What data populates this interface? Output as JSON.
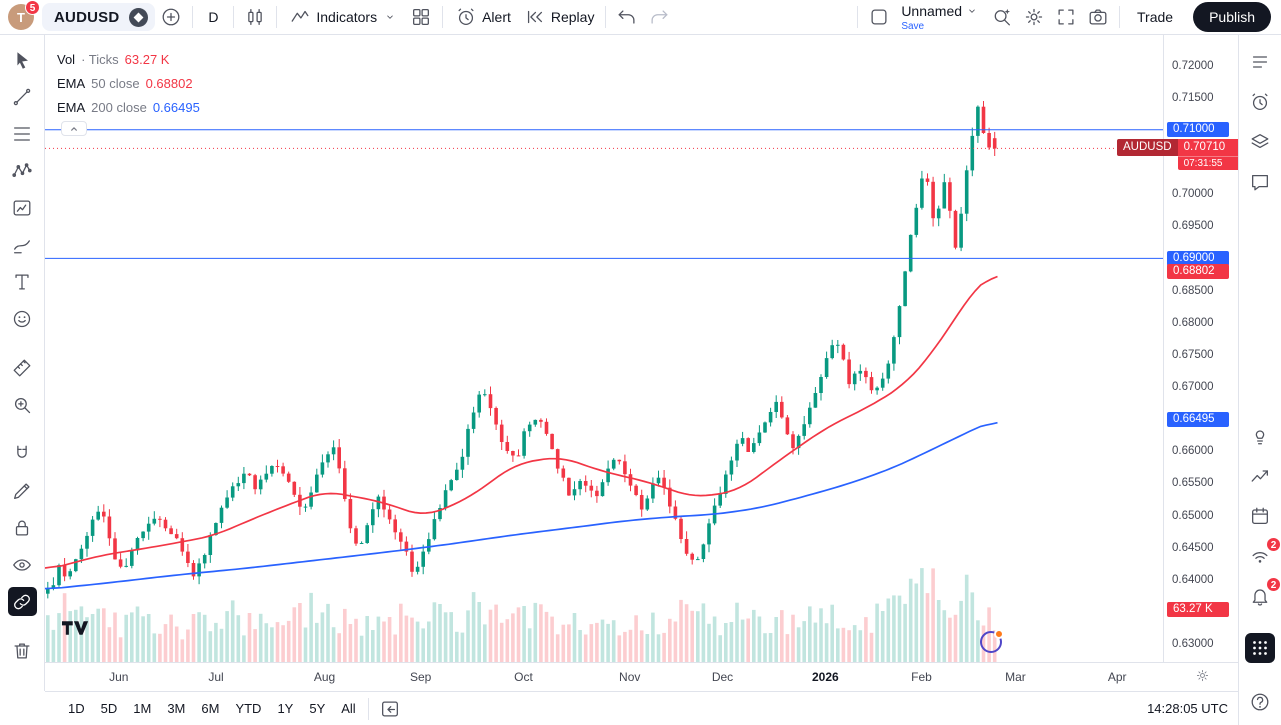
{
  "topbar": {
    "avatar_initial": "T",
    "avatar_badge": "5",
    "symbol": "AUDUSD",
    "interval": "D",
    "indicators_label": "Indicators",
    "alert_label": "Alert",
    "replay_label": "Replay",
    "layout_name": "Unnamed",
    "save_label": "Save",
    "trade_label": "Trade",
    "publish_label": "Publish"
  },
  "left_toolbar": [
    {
      "name": "cursor-tool",
      "icon": "cursor"
    },
    {
      "name": "trend-line-tool",
      "icon": "trend"
    },
    {
      "name": "fib-retracement-tool",
      "icon": "fib"
    },
    {
      "name": "xabcd-pattern-tool",
      "icon": "pattern"
    },
    {
      "name": "forecast-tool",
      "icon": "forecast"
    },
    {
      "name": "brush-tool",
      "icon": "brush"
    },
    {
      "name": "text-tool",
      "icon": "text"
    },
    {
      "name": "emoji-tool",
      "icon": "emoji"
    },
    {
      "name": "measure-tool",
      "icon": "measure",
      "gap": true
    },
    {
      "name": "zoom-tool",
      "icon": "zoomtool"
    },
    {
      "name": "magnet-tool",
      "icon": "magnet",
      "gap": true
    },
    {
      "name": "drawing-mode-tool",
      "icon": "pencil"
    },
    {
      "name": "lock-drawings-tool",
      "icon": "lock"
    },
    {
      "name": "hide-drawings-tool",
      "icon": "eye"
    },
    {
      "name": "sync-drawings-tool",
      "icon": "link",
      "active": true
    },
    {
      "name": "remove-drawings-tool",
      "icon": "trash",
      "gap": true
    }
  ],
  "right_toolbar": [
    {
      "name": "watchlist-panel",
      "icon": "watchlist"
    },
    {
      "name": "alerts-panel",
      "icon": "alarm"
    },
    {
      "name": "object-tree-panel",
      "icon": "layers"
    },
    {
      "name": "chat-panel",
      "icon": "chat"
    },
    {
      "name": "ideas-panel",
      "icon": "bulb",
      "section": 2
    },
    {
      "name": "top-movers-panel",
      "icon": "trending"
    },
    {
      "name": "calendar-panel",
      "icon": "calendar"
    },
    {
      "name": "streams-panel",
      "icon": "streams",
      "badge": "2"
    },
    {
      "name": "notifications-panel",
      "icon": "bell",
      "badge": "2"
    },
    {
      "name": "more-apps-menu",
      "icon": "apps",
      "dark": true
    },
    {
      "name": "help-button",
      "icon": "help",
      "bottom": true
    }
  ],
  "legend": {
    "volume": {
      "title": "Vol",
      "params": "· Ticks",
      "value": "63.27 K"
    },
    "ema50": {
      "title": "EMA",
      "params": "50 close",
      "value": "0.68802"
    },
    "ema200": {
      "title": "EMA",
      "params": "200 close",
      "value": "0.66495"
    }
  },
  "bottom_toolbar": {
    "ranges": [
      "1D",
      "5D",
      "1M",
      "3M",
      "6M",
      "YTD",
      "1Y",
      "5Y",
      "All"
    ],
    "clock": "14:28:05 UTC"
  },
  "colors": {
    "up": "#089981",
    "down": "#f23645",
    "accent": "#2962ff",
    "tag_red": "#b22833",
    "text": "#131722",
    "muted": "#787b86",
    "border": "#e0e3eb"
  },
  "chart_data": {
    "type": "candlestick",
    "symbol": "AUDUSD",
    "interval": "D",
    "last": {
      "price": 0.7071,
      "label": "0.70710",
      "countdown": "07:31:55",
      "direction": "down"
    },
    "indicators": {
      "volume": {
        "label": "63.27 K"
      },
      "ema50": {
        "value": 0.68802,
        "label": "0.68802"
      },
      "ema200": {
        "value": 0.66495,
        "label": "0.66495"
      }
    },
    "horizontal_lines": [
      {
        "price": 0.71,
        "label": "0.71000"
      },
      {
        "price": 0.69,
        "label": "0.69000"
      }
    ],
    "y_range": [
      0.628,
      0.7235
    ],
    "price_ticks": [
      {
        "p": 0.72,
        "label": "0.72000"
      },
      {
        "p": 0.715,
        "label": "0.71500"
      },
      {
        "p": 0.7,
        "label": "0.70000"
      },
      {
        "p": 0.695,
        "label": "0.69500"
      },
      {
        "p": 0.685,
        "label": "0.68500"
      },
      {
        "p": 0.68,
        "label": "0.68000"
      },
      {
        "p": 0.675,
        "label": "0.67500"
      },
      {
        "p": 0.67,
        "label": "0.67000"
      },
      {
        "p": 0.66,
        "label": "0.66000"
      },
      {
        "p": 0.655,
        "label": "0.65500"
      },
      {
        "p": 0.65,
        "label": "0.65000"
      },
      {
        "p": 0.645,
        "label": "0.64500"
      },
      {
        "p": 0.64,
        "label": "0.64000"
      },
      {
        "p": 0.63,
        "label": "0.63000"
      }
    ],
    "months": [
      {
        "label": "Jun",
        "t": 0.066
      },
      {
        "label": "Jul",
        "t": 0.153
      },
      {
        "label": "Aug",
        "t": 0.25
      },
      {
        "label": "Sep",
        "t": 0.336
      },
      {
        "label": "Oct",
        "t": 0.428
      },
      {
        "label": "Nov",
        "t": 0.523
      },
      {
        "label": "Dec",
        "t": 0.606
      },
      {
        "label": "2026",
        "t": 0.698,
        "bold": true
      },
      {
        "label": "Feb",
        "t": 0.784
      },
      {
        "label": "Mar",
        "t": 0.868
      },
      {
        "label": "Apr",
        "t": 0.959
      }
    ],
    "n_candles": 170,
    "last_t": 0.852,
    "close_path": [
      [
        0,
        0.64
      ],
      [
        0.006,
        0.6378
      ],
      [
        0.012,
        0.642
      ],
      [
        0.02,
        0.6395
      ],
      [
        0.028,
        0.6438
      ],
      [
        0.036,
        0.6462
      ],
      [
        0.044,
        0.65
      ],
      [
        0.05,
        0.6518
      ],
      [
        0.056,
        0.647
      ],
      [
        0.064,
        0.643
      ],
      [
        0.072,
        0.6418
      ],
      [
        0.08,
        0.6455
      ],
      [
        0.09,
        0.6488
      ],
      [
        0.1,
        0.6498
      ],
      [
        0.108,
        0.6478
      ],
      [
        0.118,
        0.646
      ],
      [
        0.126,
        0.6442
      ],
      [
        0.132,
        0.6398
      ],
      [
        0.14,
        0.643
      ],
      [
        0.15,
        0.6478
      ],
      [
        0.16,
        0.6515
      ],
      [
        0.17,
        0.6548
      ],
      [
        0.18,
        0.6572
      ],
      [
        0.188,
        0.6545
      ],
      [
        0.196,
        0.6562
      ],
      [
        0.205,
        0.6588
      ],
      [
        0.214,
        0.6558
      ],
      [
        0.222,
        0.654
      ],
      [
        0.23,
        0.6508
      ],
      [
        0.24,
        0.6545
      ],
      [
        0.25,
        0.6592
      ],
      [
        0.258,
        0.6605
      ],
      [
        0.266,
        0.6552
      ],
      [
        0.274,
        0.647
      ],
      [
        0.282,
        0.6452
      ],
      [
        0.29,
        0.6498
      ],
      [
        0.298,
        0.6532
      ],
      [
        0.306,
        0.6505
      ],
      [
        0.314,
        0.6472
      ],
      [
        0.322,
        0.6448
      ],
      [
        0.33,
        0.6402
      ],
      [
        0.338,
        0.644
      ],
      [
        0.346,
        0.6478
      ],
      [
        0.354,
        0.6518
      ],
      [
        0.362,
        0.6552
      ],
      [
        0.37,
        0.6572
      ],
      [
        0.378,
        0.6628
      ],
      [
        0.386,
        0.6682
      ],
      [
        0.392,
        0.6702
      ],
      [
        0.398,
        0.6668
      ],
      [
        0.406,
        0.6628
      ],
      [
        0.414,
        0.6595
      ],
      [
        0.422,
        0.6588
      ],
      [
        0.43,
        0.664
      ],
      [
        0.438,
        0.6652
      ],
      [
        0.446,
        0.664
      ],
      [
        0.454,
        0.66
      ],
      [
        0.462,
        0.6562
      ],
      [
        0.47,
        0.6522
      ],
      [
        0.478,
        0.6552
      ],
      [
        0.486,
        0.654
      ],
      [
        0.494,
        0.6528
      ],
      [
        0.502,
        0.6562
      ],
      [
        0.51,
        0.6595
      ],
      [
        0.518,
        0.6572
      ],
      [
        0.526,
        0.654
      ],
      [
        0.534,
        0.6508
      ],
      [
        0.542,
        0.6548
      ],
      [
        0.55,
        0.656
      ],
      [
        0.558,
        0.652
      ],
      [
        0.566,
        0.648
      ],
      [
        0.574,
        0.6442
      ],
      [
        0.582,
        0.6425
      ],
      [
        0.59,
        0.6462
      ],
      [
        0.598,
        0.6512
      ],
      [
        0.606,
        0.6545
      ],
      [
        0.614,
        0.6582
      ],
      [
        0.622,
        0.6622
      ],
      [
        0.63,
        0.6598
      ],
      [
        0.638,
        0.6625
      ],
      [
        0.646,
        0.6658
      ],
      [
        0.654,
        0.668
      ],
      [
        0.662,
        0.6642
      ],
      [
        0.67,
        0.6602
      ],
      [
        0.678,
        0.6635
      ],
      [
        0.686,
        0.668
      ],
      [
        0.694,
        0.6718
      ],
      [
        0.702,
        0.6752
      ],
      [
        0.708,
        0.6778
      ],
      [
        0.714,
        0.6742
      ],
      [
        0.72,
        0.67
      ],
      [
        0.727,
        0.673
      ],
      [
        0.734,
        0.6712
      ],
      [
        0.741,
        0.6688
      ],
      [
        0.748,
        0.6712
      ],
      [
        0.755,
        0.6745
      ],
      [
        0.761,
        0.6788
      ],
      [
        0.767,
        0.685
      ],
      [
        0.772,
        0.6912
      ],
      [
        0.777,
        0.6958
      ],
      [
        0.782,
        0.7008
      ],
      [
        0.787,
        0.7052
      ],
      [
        0.791,
        0.6995
      ],
      [
        0.796,
        0.6942
      ],
      [
        0.801,
        0.699
      ],
      [
        0.806,
        0.7035
      ],
      [
        0.81,
        0.6968
      ],
      [
        0.815,
        0.6905
      ],
      [
        0.82,
        0.6978
      ],
      [
        0.825,
        0.7045
      ],
      [
        0.83,
        0.7098
      ],
      [
        0.835,
        0.7138
      ],
      [
        0.839,
        0.7102
      ],
      [
        0.843,
        0.7062
      ],
      [
        0.847,
        0.7092
      ],
      [
        0.852,
        0.7071
      ]
    ],
    "ema50_path": [
      [
        0,
        0.6415
      ],
      [
        0.05,
        0.6438
      ],
      [
        0.1,
        0.6452
      ],
      [
        0.15,
        0.6468
      ],
      [
        0.2,
        0.6505
      ],
      [
        0.25,
        0.6538
      ],
      [
        0.3,
        0.6522
      ],
      [
        0.34,
        0.6498
      ],
      [
        0.38,
        0.6528
      ],
      [
        0.42,
        0.658
      ],
      [
        0.46,
        0.6592
      ],
      [
        0.5,
        0.6568
      ],
      [
        0.54,
        0.6552
      ],
      [
        0.58,
        0.6528
      ],
      [
        0.62,
        0.6538
      ],
      [
        0.66,
        0.659
      ],
      [
        0.7,
        0.6638
      ],
      [
        0.74,
        0.6672
      ],
      [
        0.77,
        0.6705
      ],
      [
        0.79,
        0.6745
      ],
      [
        0.81,
        0.6795
      ],
      [
        0.83,
        0.685
      ],
      [
        0.84,
        0.6868
      ],
      [
        0.852,
        0.688
      ]
    ],
    "ema200_path": [
      [
        0,
        0.6385
      ],
      [
        0.06,
        0.6396
      ],
      [
        0.12,
        0.6408
      ],
      [
        0.18,
        0.6418
      ],
      [
        0.24,
        0.643
      ],
      [
        0.3,
        0.6442
      ],
      [
        0.36,
        0.6455
      ],
      [
        0.42,
        0.647
      ],
      [
        0.48,
        0.6483
      ],
      [
        0.52,
        0.6492
      ],
      [
        0.56,
        0.6498
      ],
      [
        0.6,
        0.6502
      ],
      [
        0.64,
        0.6512
      ],
      [
        0.68,
        0.653
      ],
      [
        0.72,
        0.655
      ],
      [
        0.76,
        0.6575
      ],
      [
        0.79,
        0.66
      ],
      [
        0.82,
        0.6625
      ],
      [
        0.84,
        0.6642
      ],
      [
        0.852,
        0.6649
      ]
    ],
    "volume_profile": [
      [
        0,
        0.38
      ],
      [
        0.03,
        0.52
      ],
      [
        0.06,
        0.34
      ],
      [
        0.09,
        0.42
      ],
      [
        0.12,
        0.3
      ],
      [
        0.15,
        0.46
      ],
      [
        0.18,
        0.38
      ],
      [
        0.21,
        0.32
      ],
      [
        0.24,
        0.48
      ],
      [
        0.27,
        0.4
      ],
      [
        0.3,
        0.34
      ],
      [
        0.33,
        0.44
      ],
      [
        0.36,
        0.38
      ],
      [
        0.39,
        0.5
      ],
      [
        0.42,
        0.36
      ],
      [
        0.45,
        0.42
      ],
      [
        0.48,
        0.32
      ],
      [
        0.51,
        0.4
      ],
      [
        0.54,
        0.34
      ],
      [
        0.57,
        0.44
      ],
      [
        0.6,
        0.38
      ],
      [
        0.63,
        0.46
      ],
      [
        0.66,
        0.36
      ],
      [
        0.69,
        0.42
      ],
      [
        0.72,
        0.38
      ],
      [
        0.75,
        0.46
      ],
      [
        0.77,
        0.55
      ],
      [
        0.785,
        0.78
      ],
      [
        0.795,
        1
      ],
      [
        0.805,
        0.72
      ],
      [
        0.815,
        0.55
      ],
      [
        0.822,
        0.85
      ],
      [
        0.83,
        0.62
      ],
      [
        0.84,
        0.48
      ],
      [
        0.852,
        0.42
      ]
    ]
  }
}
